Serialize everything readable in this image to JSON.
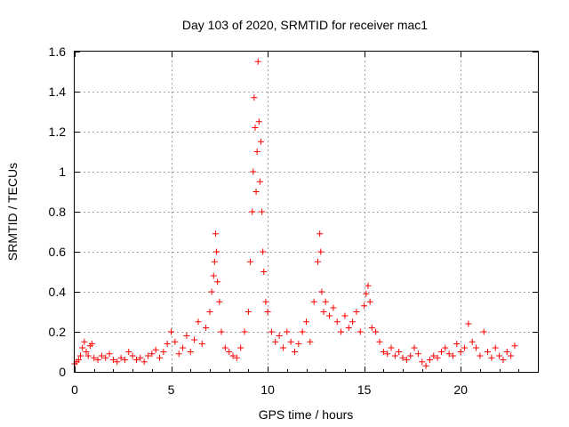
{
  "chart_data": {
    "type": "scatter",
    "title": "Day 103 of 2020, SRMTID for receiver mac1",
    "xlabel": "GPS time / hours",
    "ylabel": "SRMTID / TECUs",
    "xlim": [
      0,
      24
    ],
    "ylim": [
      0,
      1.6
    ],
    "xticks": [
      0,
      5,
      10,
      15,
      20
    ],
    "xtick_labels": [
      "0",
      "5",
      "10",
      "15",
      "20"
    ],
    "yticks": [
      0,
      0.2,
      0.4,
      0.6,
      0.8,
      1.0,
      1.2,
      1.4,
      1.6
    ],
    "ytick_labels": [
      "0",
      "0.2",
      "0.4",
      "0.6",
      "0.8",
      "1",
      "1.2",
      "1.4",
      "1.6"
    ],
    "grid": true,
    "marker": "plus",
    "series": [
      {
        "name": "SRMTID",
        "color": "#ff0000",
        "x": [
          0.0,
          0.1,
          0.2,
          0.3,
          0.4,
          0.5,
          0.6,
          0.7,
          0.8,
          0.9,
          1.0,
          1.2,
          1.4,
          1.6,
          1.8,
          2.0,
          2.2,
          2.4,
          2.6,
          2.8,
          3.0,
          3.2,
          3.4,
          3.6,
          3.8,
          4.0,
          4.2,
          4.4,
          4.6,
          4.8,
          5.0,
          5.2,
          5.4,
          5.6,
          5.8,
          6.0,
          6.2,
          6.4,
          6.6,
          6.8,
          7.0,
          7.1,
          7.2,
          7.25,
          7.3,
          7.35,
          7.4,
          7.5,
          7.6,
          7.8,
          8.0,
          8.2,
          8.4,
          8.6,
          8.8,
          9.0,
          9.1,
          9.2,
          9.25,
          9.3,
          9.35,
          9.4,
          9.45,
          9.5,
          9.55,
          9.6,
          9.65,
          9.7,
          9.75,
          9.8,
          9.9,
          10.0,
          10.2,
          10.4,
          10.6,
          10.8,
          11.0,
          11.2,
          11.4,
          11.6,
          11.8,
          12.0,
          12.2,
          12.4,
          12.6,
          12.7,
          12.75,
          12.8,
          12.9,
          13.0,
          13.2,
          13.4,
          13.6,
          13.8,
          14.0,
          14.2,
          14.4,
          14.6,
          14.8,
          15.0,
          15.1,
          15.2,
          15.3,
          15.4,
          15.6,
          15.8,
          16.0,
          16.2,
          16.4,
          16.6,
          16.8,
          17.0,
          17.2,
          17.4,
          17.6,
          17.8,
          18.0,
          18.2,
          18.4,
          18.6,
          18.8,
          19.0,
          19.2,
          19.4,
          19.6,
          19.8,
          20.0,
          20.2,
          20.4,
          20.6,
          20.8,
          21.0,
          21.2,
          21.4,
          21.6,
          21.8,
          22.0,
          22.2,
          22.4,
          22.6,
          22.8
        ],
        "y": [
          0.04,
          0.05,
          0.06,
          0.08,
          0.12,
          0.15,
          0.1,
          0.08,
          0.13,
          0.14,
          0.07,
          0.06,
          0.08,
          0.07,
          0.09,
          0.06,
          0.05,
          0.07,
          0.06,
          0.1,
          0.08,
          0.06,
          0.07,
          0.05,
          0.08,
          0.09,
          0.11,
          0.07,
          0.1,
          0.14,
          0.2,
          0.15,
          0.09,
          0.12,
          0.18,
          0.1,
          0.16,
          0.25,
          0.14,
          0.22,
          0.3,
          0.4,
          0.48,
          0.55,
          0.69,
          0.6,
          0.45,
          0.35,
          0.2,
          0.12,
          0.1,
          0.08,
          0.07,
          0.12,
          0.2,
          0.3,
          0.55,
          0.8,
          1.0,
          1.37,
          1.22,
          0.9,
          1.1,
          1.55,
          1.25,
          0.95,
          1.15,
          0.8,
          0.6,
          0.5,
          0.35,
          0.3,
          0.2,
          0.15,
          0.18,
          0.12,
          0.2,
          0.15,
          0.1,
          0.14,
          0.2,
          0.25,
          0.15,
          0.35,
          0.55,
          0.69,
          0.6,
          0.4,
          0.3,
          0.35,
          0.28,
          0.32,
          0.25,
          0.2,
          0.28,
          0.22,
          0.25,
          0.3,
          0.2,
          0.33,
          0.39,
          0.43,
          0.35,
          0.22,
          0.2,
          0.15,
          0.1,
          0.09,
          0.12,
          0.08,
          0.1,
          0.07,
          0.06,
          0.08,
          0.12,
          0.09,
          0.05,
          0.03,
          0.06,
          0.08,
          0.07,
          0.1,
          0.12,
          0.09,
          0.08,
          0.14,
          0.1,
          0.12,
          0.24,
          0.15,
          0.12,
          0.08,
          0.2,
          0.1,
          0.07,
          0.12,
          0.08,
          0.06,
          0.1,
          0.08,
          0.13
        ]
      }
    ]
  }
}
